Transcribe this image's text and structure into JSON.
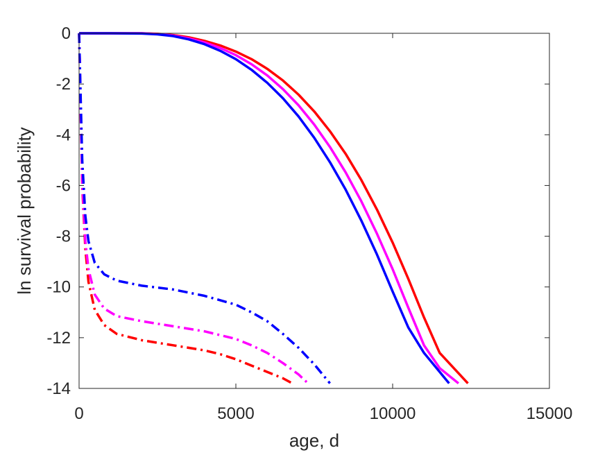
{
  "chart_data": {
    "type": "line",
    "title": "",
    "xlabel": "age, d",
    "ylabel": "ln survival probability",
    "xlim": [
      0,
      15000
    ],
    "ylim": [
      -14,
      0
    ],
    "xticks": [
      0,
      5000,
      10000,
      15000
    ],
    "yticks": [
      0,
      -2,
      -4,
      -6,
      -8,
      -10,
      -12,
      -14
    ],
    "xtick_labels": [
      "0",
      "5000",
      "10000",
      "15000"
    ],
    "ytick_labels": [
      "0",
      "-2",
      "-4",
      "-6",
      "-8",
      "-10",
      "-12",
      "-14"
    ],
    "grid": false,
    "legend": "none",
    "series": [
      {
        "color": "#ff0000",
        "style": "solid",
        "points": [
          [
            0,
            0
          ],
          [
            1000,
            0
          ],
          [
            2000,
            0
          ],
          [
            2500,
            -0.02
          ],
          [
            3000,
            -0.07
          ],
          [
            3500,
            -0.16
          ],
          [
            4000,
            -0.3
          ],
          [
            4500,
            -0.48
          ],
          [
            5000,
            -0.72
          ],
          [
            5500,
            -1.02
          ],
          [
            6000,
            -1.4
          ],
          [
            6500,
            -1.86
          ],
          [
            7000,
            -2.42
          ],
          [
            7500,
            -3.08
          ],
          [
            8000,
            -3.86
          ],
          [
            8500,
            -4.75
          ],
          [
            9000,
            -5.78
          ],
          [
            9500,
            -6.95
          ],
          [
            10000,
            -8.25
          ],
          [
            10500,
            -9.68
          ],
          [
            11000,
            -11.2
          ],
          [
            11500,
            -12.6
          ],
          [
            12400,
            -13.8
          ]
        ]
      },
      {
        "color": "#ff00ff",
        "style": "solid",
        "points": [
          [
            0,
            0
          ],
          [
            1000,
            0
          ],
          [
            2000,
            0
          ],
          [
            2500,
            -0.03
          ],
          [
            3000,
            -0.09
          ],
          [
            3500,
            -0.2
          ],
          [
            4000,
            -0.36
          ],
          [
            4500,
            -0.58
          ],
          [
            5000,
            -0.86
          ],
          [
            5500,
            -1.22
          ],
          [
            6000,
            -1.66
          ],
          [
            6500,
            -2.2
          ],
          [
            7000,
            -2.84
          ],
          [
            7500,
            -3.6
          ],
          [
            8000,
            -4.48
          ],
          [
            8500,
            -5.48
          ],
          [
            9000,
            -6.62
          ],
          [
            9500,
            -7.9
          ],
          [
            10000,
            -9.3
          ],
          [
            10500,
            -10.82
          ],
          [
            11000,
            -12.3
          ],
          [
            11500,
            -13.2
          ],
          [
            12100,
            -13.8
          ]
        ]
      },
      {
        "color": "#0000ff",
        "style": "solid",
        "points": [
          [
            0,
            0
          ],
          [
            1000,
            0
          ],
          [
            2000,
            -0.01
          ],
          [
            2500,
            -0.04
          ],
          [
            3000,
            -0.11
          ],
          [
            3500,
            -0.24
          ],
          [
            4000,
            -0.43
          ],
          [
            4500,
            -0.69
          ],
          [
            5000,
            -1.02
          ],
          [
            5500,
            -1.44
          ],
          [
            6000,
            -1.95
          ],
          [
            6500,
            -2.56
          ],
          [
            7000,
            -3.28
          ],
          [
            7500,
            -4.12
          ],
          [
            8000,
            -5.08
          ],
          [
            8500,
            -6.16
          ],
          [
            9000,
            -7.38
          ],
          [
            9500,
            -8.72
          ],
          [
            10000,
            -10.18
          ],
          [
            10500,
            -11.6
          ],
          [
            11000,
            -12.6
          ],
          [
            11800,
            -13.8
          ]
        ]
      },
      {
        "color": "#ff0000",
        "style": "dashdot",
        "points": [
          [
            0,
            0
          ],
          [
            20,
            -1
          ],
          [
            50,
            -3
          ],
          [
            100,
            -6
          ],
          [
            200,
            -8.5
          ],
          [
            300,
            -9.8
          ],
          [
            500,
            -10.9
          ],
          [
            800,
            -11.5
          ],
          [
            1200,
            -11.85
          ],
          [
            2000,
            -12.1
          ],
          [
            3000,
            -12.3
          ],
          [
            4000,
            -12.5
          ],
          [
            4500,
            -12.65
          ],
          [
            5000,
            -12.85
          ],
          [
            5500,
            -13.1
          ],
          [
            6000,
            -13.35
          ],
          [
            6500,
            -13.6
          ],
          [
            6800,
            -13.8
          ]
        ]
      },
      {
        "color": "#ff00ff",
        "style": "dashdot",
        "points": [
          [
            0,
            0
          ],
          [
            20,
            -1
          ],
          [
            50,
            -3
          ],
          [
            100,
            -5.8
          ],
          [
            200,
            -8.2
          ],
          [
            300,
            -9.3
          ],
          [
            500,
            -10.3
          ],
          [
            800,
            -10.85
          ],
          [
            1200,
            -11.15
          ],
          [
            2000,
            -11.35
          ],
          [
            3000,
            -11.55
          ],
          [
            4000,
            -11.75
          ],
          [
            5000,
            -12.05
          ],
          [
            5500,
            -12.3
          ],
          [
            6000,
            -12.6
          ],
          [
            6500,
            -13
          ],
          [
            7000,
            -13.45
          ],
          [
            7300,
            -13.8
          ]
        ]
      },
      {
        "color": "#0000ff",
        "style": "dashdot",
        "points": [
          [
            0,
            0
          ],
          [
            20,
            -1
          ],
          [
            50,
            -2.5
          ],
          [
            100,
            -5
          ],
          [
            200,
            -7.2
          ],
          [
            300,
            -8.2
          ],
          [
            500,
            -9.05
          ],
          [
            800,
            -9.5
          ],
          [
            1200,
            -9.75
          ],
          [
            2000,
            -9.95
          ],
          [
            3000,
            -10.1
          ],
          [
            4000,
            -10.35
          ],
          [
            5000,
            -10.7
          ],
          [
            5500,
            -11
          ],
          [
            6000,
            -11.35
          ],
          [
            6500,
            -11.85
          ],
          [
            7000,
            -12.4
          ],
          [
            7500,
            -13.05
          ],
          [
            8000,
            -13.8
          ]
        ]
      }
    ]
  }
}
